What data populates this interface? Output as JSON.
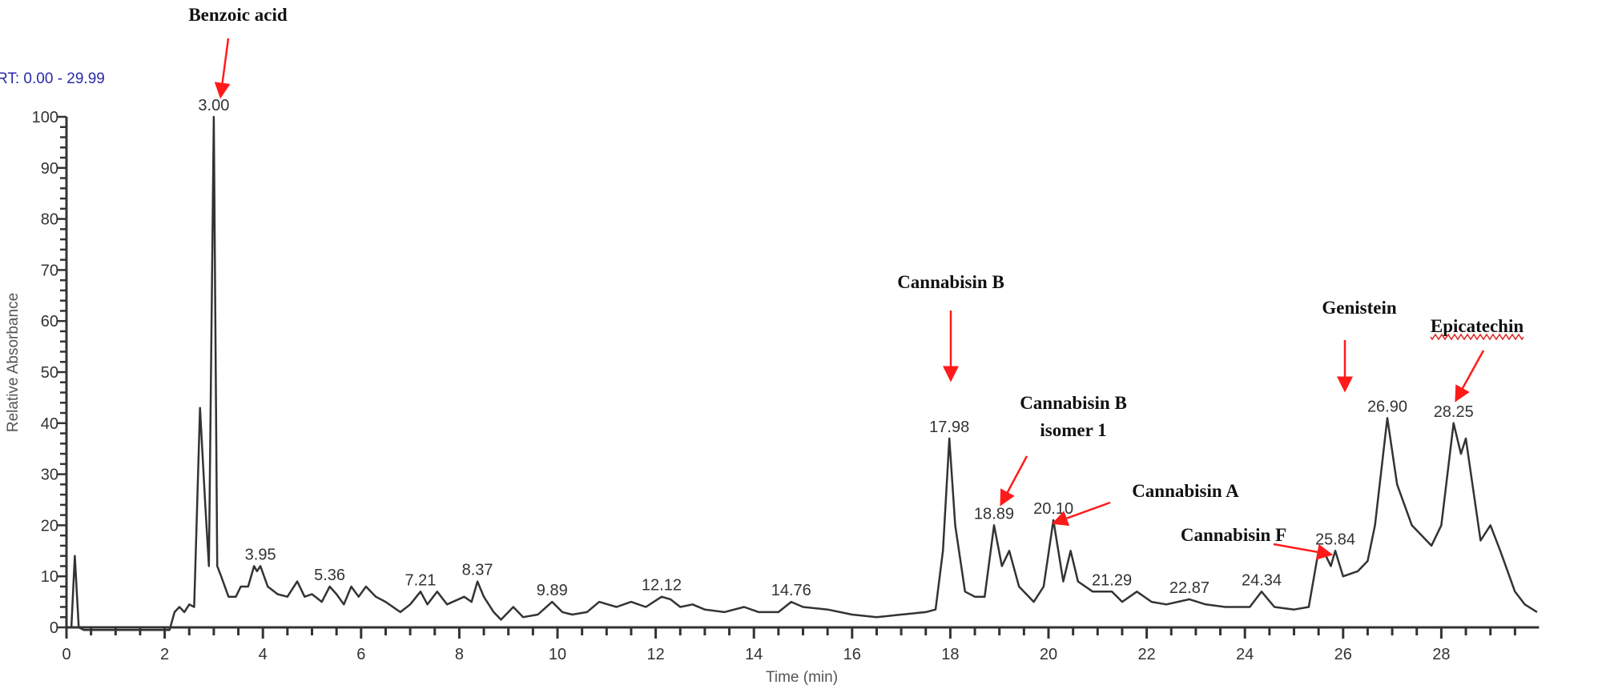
{
  "chart_data": {
    "type": "line",
    "title": "",
    "range_label": "RT: 0.00 - 29.99",
    "xlabel": "Time (min)",
    "ylabel": "Relative Absorbance",
    "xlim": [
      0,
      29.99
    ],
    "ylim": [
      0,
      100
    ],
    "xticks": [
      0,
      2,
      4,
      6,
      8,
      10,
      12,
      14,
      16,
      18,
      20,
      22,
      24,
      26,
      28
    ],
    "yticks": [
      0,
      10,
      20,
      30,
      40,
      50,
      60,
      70,
      80,
      90,
      100
    ],
    "grid": false,
    "legend": "none",
    "colors": {
      "trace": "#333333",
      "arrow": "#ff1a1a",
      "range_label": "#2a2aa8"
    },
    "series": [
      {
        "x": [
          0,
          0.1,
          0.17,
          0.25,
          0.35,
          2.1,
          2.2,
          2.3,
          2.4,
          2.5,
          2.6,
          2.72,
          2.82,
          2.9,
          3.0,
          3.07,
          3.15,
          3.3,
          3.45,
          3.55,
          3.7,
          3.82,
          3.88,
          3.95,
          4.1,
          4.3,
          4.5,
          4.7,
          4.85,
          5.0,
          5.2,
          5.36,
          5.5,
          5.65,
          5.8,
          5.95,
          6.1,
          6.3,
          6.5,
          6.8,
          7.0,
          7.21,
          7.35,
          7.55,
          7.75,
          8.1,
          8.25,
          8.37,
          8.5,
          8.7,
          8.85,
          9.1,
          9.3,
          9.6,
          9.89,
          10.1,
          10.3,
          10.6,
          10.85,
          11.2,
          11.5,
          11.8,
          12.12,
          12.3,
          12.5,
          12.75,
          13.0,
          13.4,
          13.8,
          14.1,
          14.5,
          14.76,
          15.0,
          15.5,
          16.0,
          16.5,
          17.0,
          17.5,
          17.7,
          17.85,
          17.98,
          18.1,
          18.3,
          18.5,
          18.7,
          18.89,
          19.05,
          19.2,
          19.4,
          19.7,
          19.9,
          20.1,
          20.3,
          20.45,
          20.6,
          20.9,
          21.29,
          21.5,
          21.8,
          22.1,
          22.4,
          22.87,
          23.2,
          23.6,
          24.1,
          24.34,
          24.6,
          25.0,
          25.3,
          25.5,
          25.65,
          25.75,
          25.84,
          26.0,
          26.3,
          26.5,
          26.65,
          26.9,
          27.1,
          27.4,
          27.8,
          28.0,
          28.25,
          28.4,
          28.5,
          28.8,
          29.0,
          29.2,
          29.5,
          29.7,
          29.95
        ],
        "y": [
          0,
          0,
          14,
          0,
          -0.5,
          -0.5,
          3,
          4,
          3,
          4.5,
          4,
          43,
          25,
          12,
          100,
          12,
          10,
          6,
          6,
          8,
          8,
          12,
          11,
          12,
          8,
          6.5,
          6,
          9,
          6,
          6.5,
          5,
          8,
          6.5,
          4.5,
          8,
          6,
          8,
          6,
          5,
          3,
          4.5,
          7,
          4.5,
          7,
          4.5,
          6,
          5,
          9,
          6,
          3,
          1.5,
          4,
          2,
          2.5,
          5,
          3,
          2.5,
          3,
          5,
          4,
          5,
          4,
          6,
          5.5,
          4,
          4.5,
          3.5,
          3,
          4,
          3,
          3,
          5,
          4,
          3.5,
          2.5,
          2,
          2.5,
          3,
          3.5,
          15,
          37,
          20,
          7,
          6,
          6,
          20,
          12,
          15,
          8,
          5,
          8,
          21,
          9,
          15,
          9,
          7,
          7,
          5,
          7,
          5,
          4.5,
          5.5,
          4.5,
          4,
          4,
          7,
          4,
          3.5,
          4,
          15,
          14,
          12,
          15,
          10,
          11,
          13,
          20,
          41,
          28,
          20,
          16,
          20,
          40,
          34,
          37,
          17,
          20,
          15,
          7,
          4.5,
          3
        ]
      }
    ],
    "peak_labels": [
      {
        "text": "3.00",
        "x": 3.0,
        "y": 100
      },
      {
        "text": "3.95",
        "x": 3.95,
        "y": 12
      },
      {
        "text": "5.36",
        "x": 5.36,
        "y": 8
      },
      {
        "text": "7.21",
        "x": 7.21,
        "y": 7
      },
      {
        "text": "8.37",
        "x": 8.37,
        "y": 9
      },
      {
        "text": "9.89",
        "x": 9.89,
        "y": 5
      },
      {
        "text": "12.12",
        "x": 12.12,
        "y": 6
      },
      {
        "text": "14.76",
        "x": 14.76,
        "y": 5
      },
      {
        "text": "17.98",
        "x": 17.98,
        "y": 37
      },
      {
        "text": "18.89",
        "x": 18.89,
        "y": 20
      },
      {
        "text": "20.10",
        "x": 20.1,
        "y": 21
      },
      {
        "text": "21.29",
        "x": 21.29,
        "y": 7
      },
      {
        "text": "22.87",
        "x": 22.87,
        "y": 5.5
      },
      {
        "text": "24.34",
        "x": 24.34,
        "y": 7
      },
      {
        "text": "25.84",
        "x": 25.84,
        "y": 15
      },
      {
        "text": "26.90",
        "x": 26.9,
        "y": 41
      },
      {
        "text": "28.25",
        "x": 28.25,
        "y": 40
      }
    ],
    "annotations": [
      {
        "lines": [
          "Benzoic acid"
        ],
        "peak": "3.00"
      },
      {
        "lines": [
          "Cannabisin B"
        ],
        "peak": "17.98"
      },
      {
        "lines": [
          "Cannabisin B",
          "isomer 1"
        ],
        "peak": "18.89"
      },
      {
        "lines": [
          "Cannabisin A"
        ],
        "peak": "20.10"
      },
      {
        "lines": [
          "Cannabisin F"
        ],
        "peak": "25.84"
      },
      {
        "lines": [
          "Genistein"
        ],
        "peak": "26.90"
      },
      {
        "lines": [
          "Epicatechin"
        ],
        "peak": "28.25"
      }
    ]
  }
}
